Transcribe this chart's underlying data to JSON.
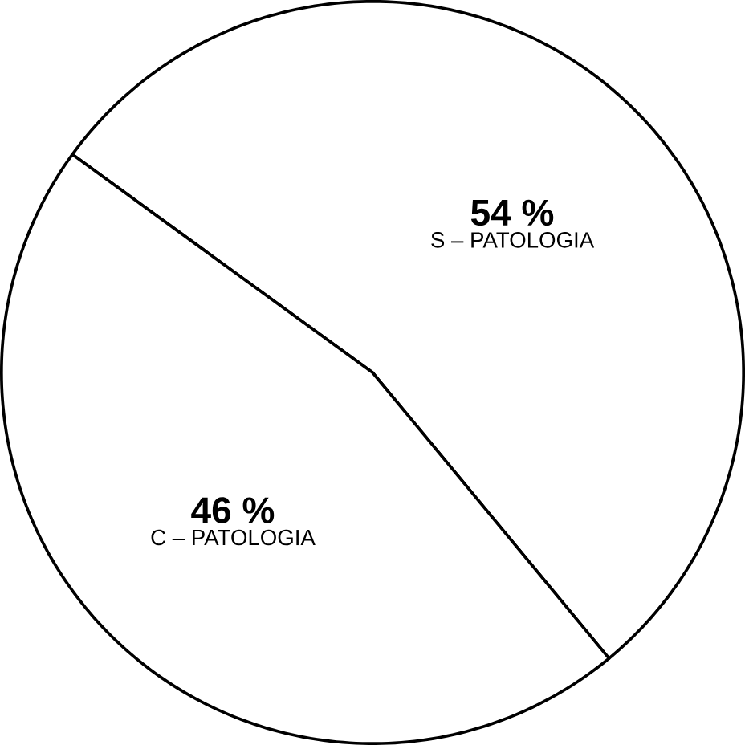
{
  "chart_data": {
    "type": "pie",
    "categories": [
      "S – PATOLOGIA",
      "C – PATOLOGIA"
    ],
    "values": [
      54,
      46
    ],
    "colors": [
      "#ffffff",
      "#ffffff"
    ],
    "value_labels": [
      "54 %",
      "46 %"
    ]
  }
}
